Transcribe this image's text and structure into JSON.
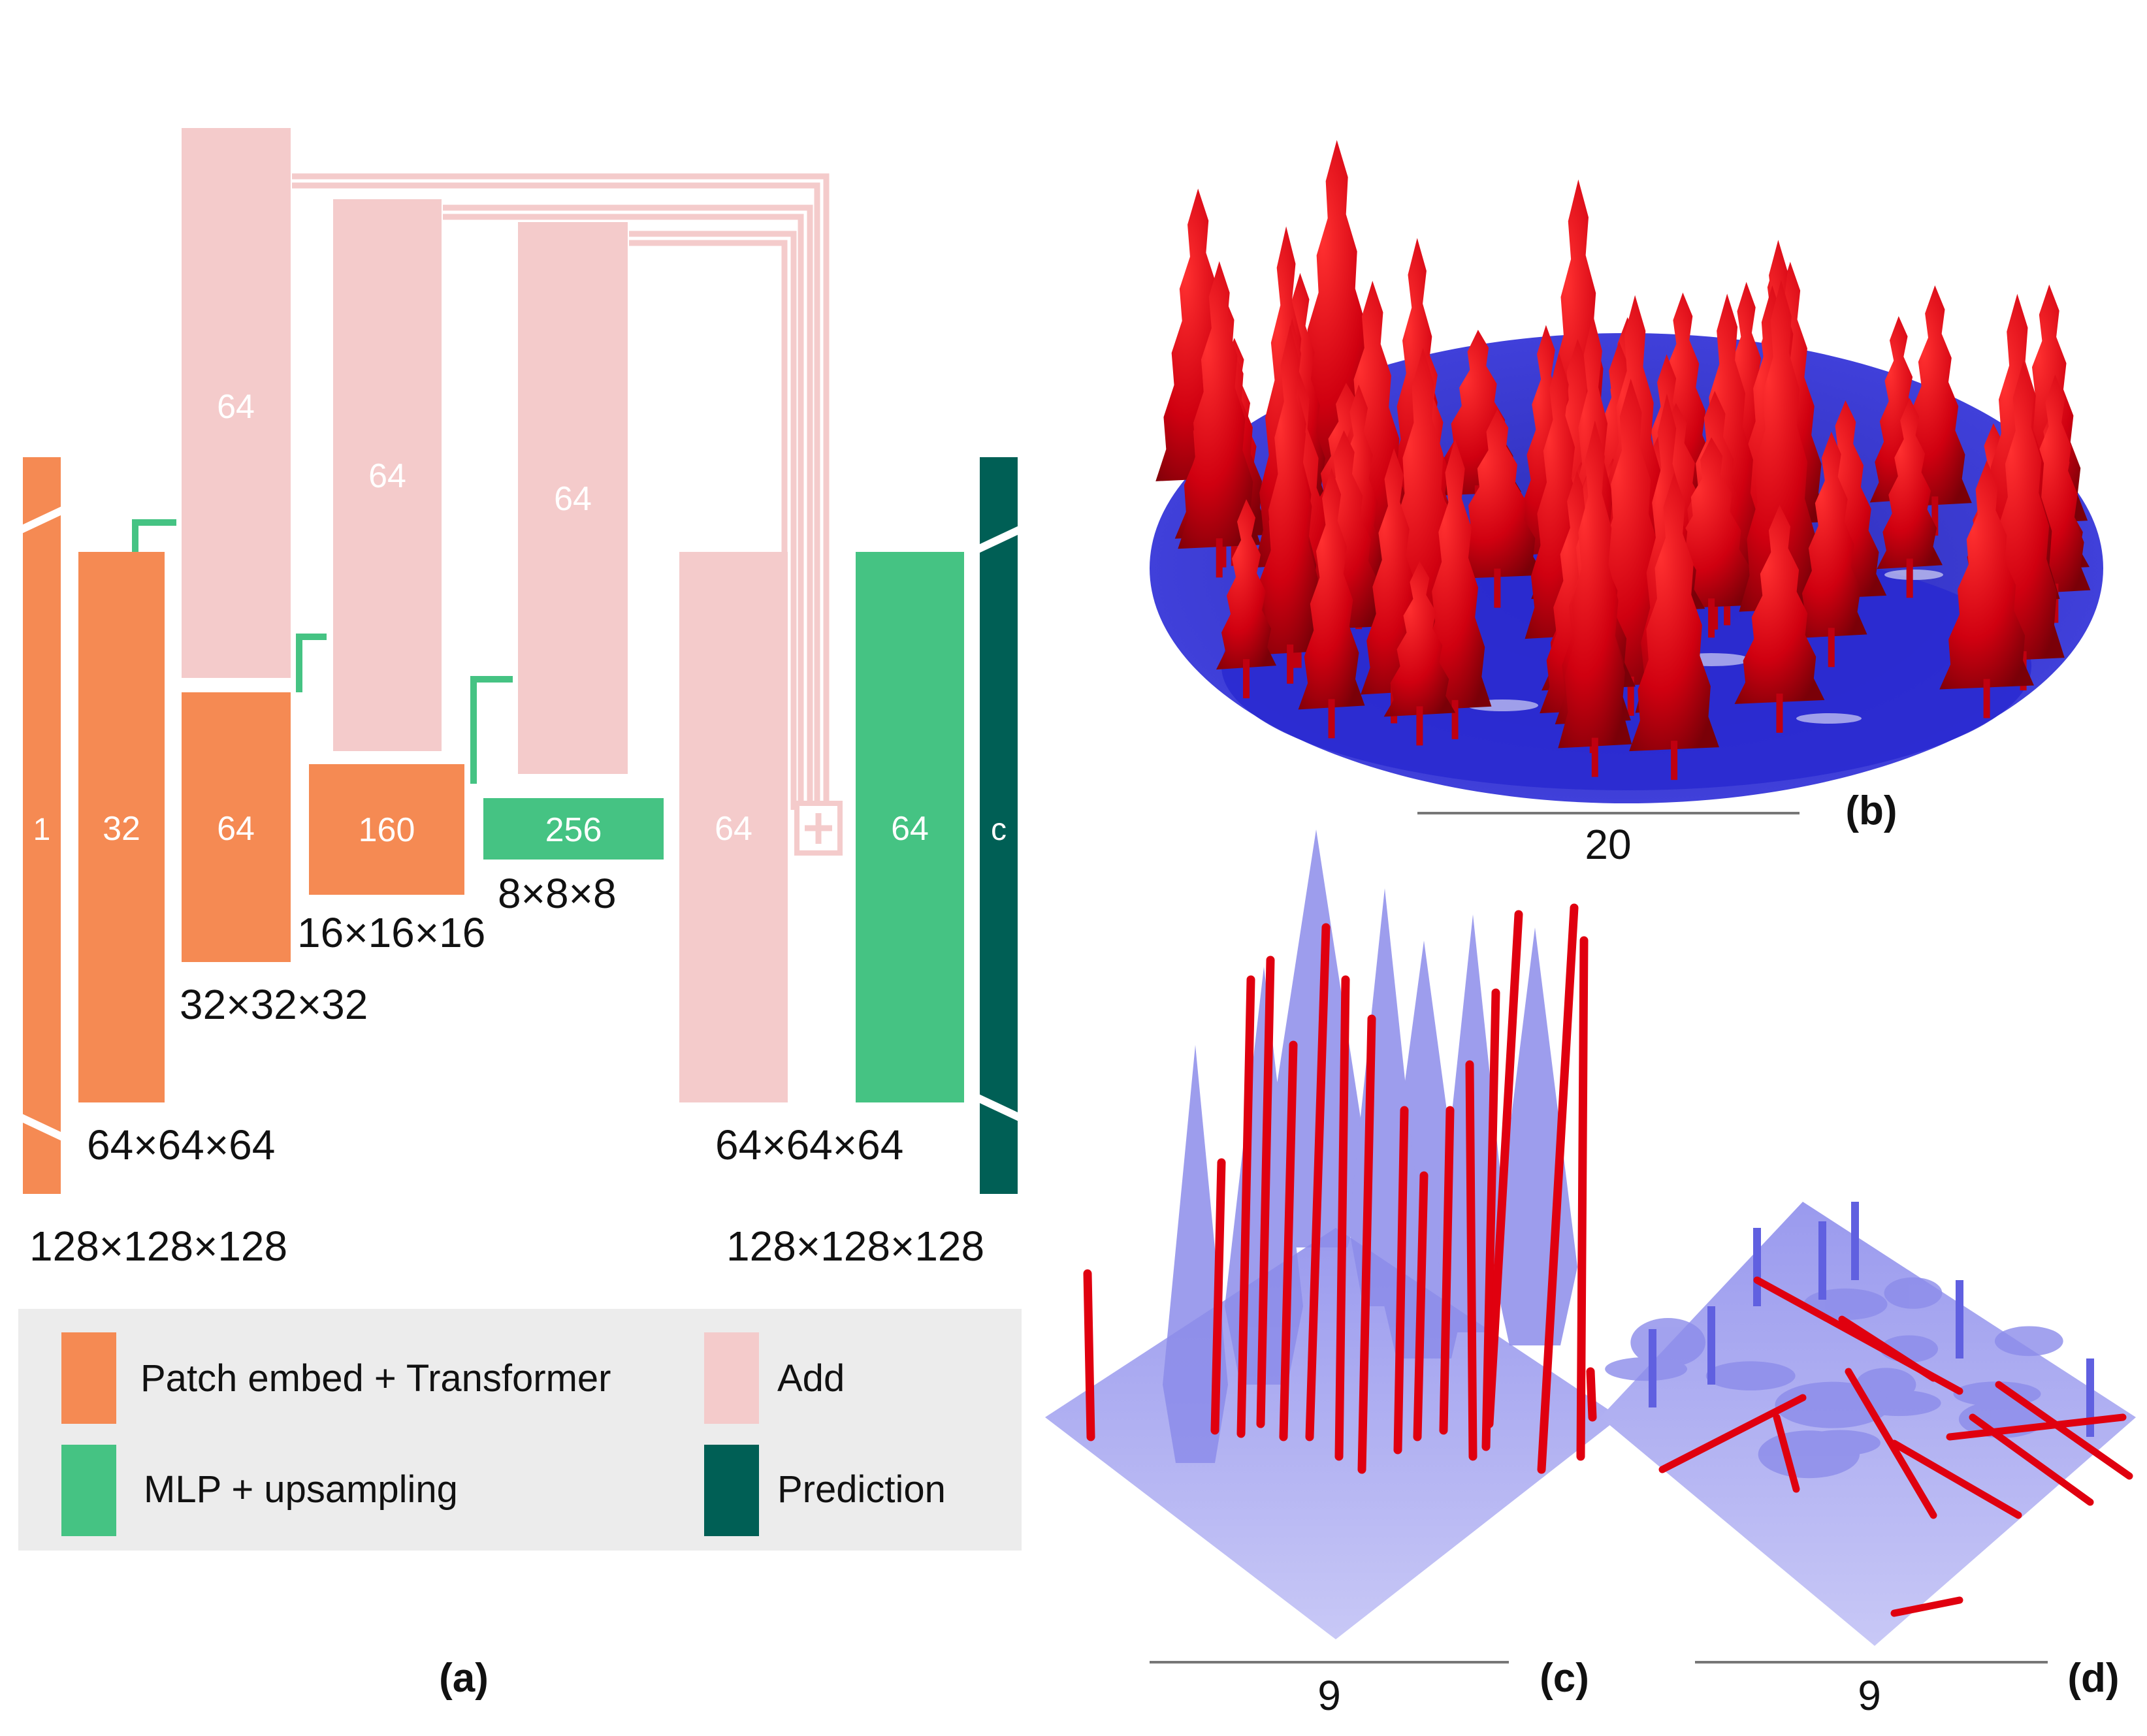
{
  "colors": {
    "patch_embed": "#F58A53",
    "add": "#F4CBCB",
    "mlp": "#45C383",
    "prediction": "#005F55",
    "legend_bg": "#ECECEC",
    "tree": "#E0000F",
    "ground_dark": "#1A1AC8",
    "ground_light": "#8080E8",
    "scale_line": "#777777"
  },
  "network": {
    "blocks": {
      "input": "1",
      "enc1": "32",
      "enc2": "64",
      "enc3": "160",
      "enc4": "256",
      "skip1": "64",
      "skip2": "64",
      "skip3": "64",
      "sum": "64",
      "mlp_out": "64",
      "prediction": "c"
    },
    "dims": {
      "input_res": "128×128×128",
      "enc1_res": "64×64×64",
      "enc2_res": "32×32×32",
      "enc3_res": "16×16×16",
      "enc4_res": "8×8×8",
      "dec_res": "64×64×64",
      "output_res": "128×128×128"
    }
  },
  "legend": {
    "items": [
      {
        "label": "Patch embed + Transformer",
        "color_key": "patch_embed"
      },
      {
        "label": "Add",
        "color_key": "add"
      },
      {
        "label": "MLP + upsampling",
        "color_key": "mlp"
      },
      {
        "label": "Prediction",
        "color_key": "prediction"
      }
    ]
  },
  "panels": {
    "a": {
      "label": "(a)"
    },
    "b": {
      "label": "(b)",
      "scale": "20"
    },
    "c": {
      "label": "(c)",
      "scale": "9"
    },
    "d": {
      "label": "(d)",
      "scale": "9"
    }
  }
}
